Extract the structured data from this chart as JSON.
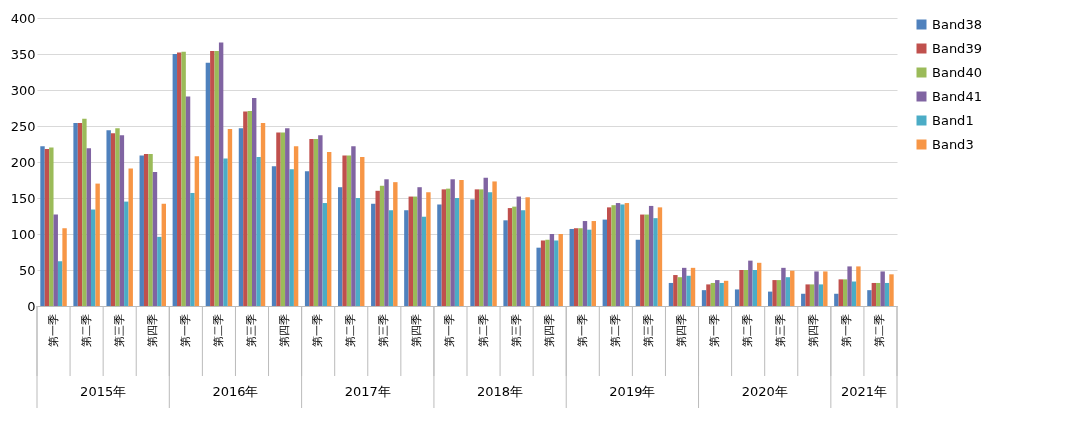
{
  "chart_data": {
    "type": "bar",
    "categories": [
      "第一季",
      "第二季",
      "第三季",
      "第四季",
      "第一季",
      "第二季",
      "第三季",
      "第四季",
      "第一季",
      "第二季",
      "第三季",
      "第四季",
      "第一季",
      "第二季",
      "第三季",
      "第四季",
      "第一季",
      "第二季",
      "第三季",
      "第四季",
      "第一季",
      "第二季",
      "第三季",
      "第四季",
      "第一季",
      "第二季"
    ],
    "annotations": [
      "2015年",
      "2016年",
      "2017年",
      "2018年",
      "2019年",
      "2020年",
      "2021年"
    ],
    "series": [
      {
        "name": "Band38",
        "color": "#4f81bd",
        "values": [
          222,
          254,
          244,
          209,
          350,
          338,
          247,
          194,
          187,
          165,
          142,
          133,
          141,
          148,
          119,
          81,
          107,
          120,
          92,
          32,
          22,
          23,
          20,
          17,
          17,
          22
        ]
      },
      {
        "name": "Band39",
        "color": "#c0504d",
        "values": [
          218,
          254,
          240,
          211,
          352,
          354,
          270,
          241,
          232,
          209,
          160,
          152,
          162,
          162,
          136,
          91,
          108,
          137,
          127,
          43,
          30,
          50,
          36,
          30,
          37,
          32
        ]
      },
      {
        "name": "Band40",
        "color": "#9bbb59",
        "values": [
          220,
          260,
          247,
          211,
          353,
          354,
          271,
          241,
          232,
          209,
          167,
          152,
          163,
          162,
          138,
          92,
          108,
          140,
          127,
          40,
          32,
          50,
          36,
          30,
          37,
          32
        ]
      },
      {
        "name": "Band41",
        "color": "#8064a2",
        "values": [
          127,
          219,
          237,
          186,
          291,
          366,
          289,
          247,
          237,
          222,
          176,
          165,
          176,
          178,
          152,
          100,
          118,
          143,
          139,
          53,
          36,
          63,
          53,
          48,
          55,
          48
        ]
      },
      {
        "name": "Band1",
        "color": "#4bacc6",
        "values": [
          62,
          134,
          145,
          96,
          157,
          205,
          207,
          190,
          143,
          150,
          133,
          124,
          150,
          158,
          133,
          91,
          106,
          141,
          122,
          42,
          32,
          50,
          40,
          30,
          34,
          32
        ]
      },
      {
        "name": "Band3",
        "color": "#f79646",
        "values": [
          108,
          170,
          191,
          142,
          208,
          246,
          254,
          222,
          214,
          207,
          172,
          158,
          175,
          173,
          151,
          100,
          118,
          143,
          137,
          53,
          35,
          60,
          49,
          48,
          55,
          44
        ]
      }
    ],
    "ylim": [
      0,
      400
    ],
    "yticks": [
      0,
      50,
      100,
      150,
      200,
      250,
      300,
      350,
      400
    ],
    "grid": "y",
    "legend": "right"
  }
}
